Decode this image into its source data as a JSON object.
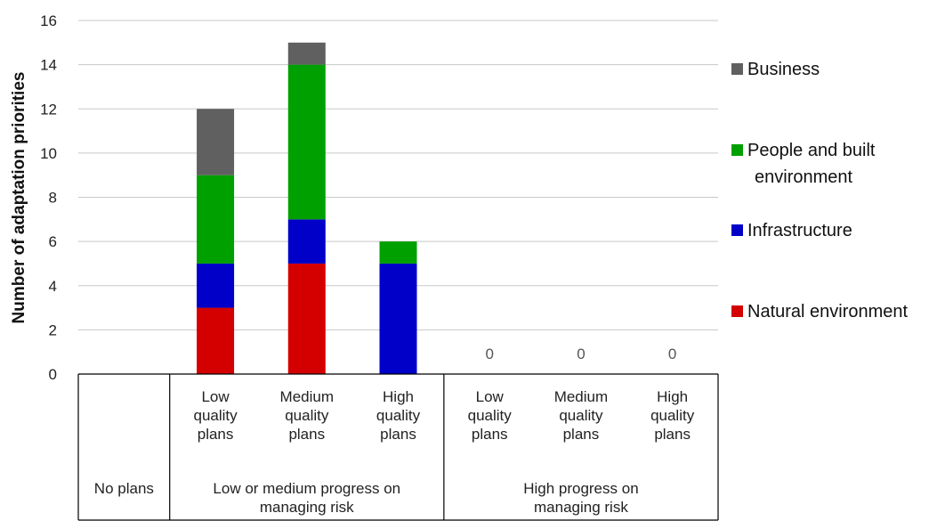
{
  "chart_data": {
    "type": "bar",
    "stacked": true,
    "ylabel": "Number of adaptation priorities",
    "ylim": [
      0,
      16
    ],
    "yticks": [
      0,
      2,
      4,
      6,
      8,
      10,
      12,
      14,
      16
    ],
    "grid": true,
    "legend_position": "right",
    "categories": [
      "No plans",
      "Low quality plans",
      "Medium quality plans",
      "High quality plans",
      "Low quality plans",
      "Medium quality plans",
      "High quality plans"
    ],
    "category_lines": [
      [
        "No plans"
      ],
      [
        "Low",
        "quality",
        "plans"
      ],
      [
        "Medium",
        "quality",
        "plans"
      ],
      [
        "High",
        "quality",
        "plans"
      ],
      [
        "Low",
        "quality",
        "plans"
      ],
      [
        "Medium",
        "quality",
        "plans"
      ],
      [
        "High",
        "quality",
        "plans"
      ]
    ],
    "groups": [
      {
        "lines": [
          "No plans"
        ],
        "span": [
          0,
          0
        ]
      },
      {
        "lines": [
          "Low or medium progress on",
          "managing risk"
        ],
        "span": [
          1,
          3
        ]
      },
      {
        "lines": [
          "High progress on",
          "managing risk"
        ],
        "span": [
          4,
          6
        ]
      }
    ],
    "series": [
      {
        "name": "Natural environment",
        "color": "#d40000",
        "values": [
          0,
          3,
          5,
          0,
          0,
          0,
          0
        ]
      },
      {
        "name": "Infrastructure",
        "color": "#0000c8",
        "values": [
          0,
          2,
          2,
          5,
          0,
          0,
          0
        ]
      },
      {
        "name": "People and built environment",
        "color": "#00a000",
        "values": [
          0,
          4,
          7,
          1,
          0,
          0,
          0
        ]
      },
      {
        "name": "Business",
        "color": "#606060",
        "values": [
          0,
          3,
          1,
          0,
          0,
          0,
          0
        ]
      }
    ],
    "legend_order": [
      "Business",
      "People and built environment",
      "Infrastructure",
      "Natural environment"
    ],
    "legend_lines": {
      "Business": [
        "Business"
      ],
      "People and built environment": [
        "People and built",
        "environment"
      ],
      "Infrastructure": [
        "Infrastructure"
      ],
      "Natural environment": [
        "Natural environment"
      ]
    },
    "data_labels": [
      {
        "category_index": 4,
        "text": "0"
      },
      {
        "category_index": 5,
        "text": "0"
      },
      {
        "category_index": 6,
        "text": "0"
      }
    ]
  }
}
